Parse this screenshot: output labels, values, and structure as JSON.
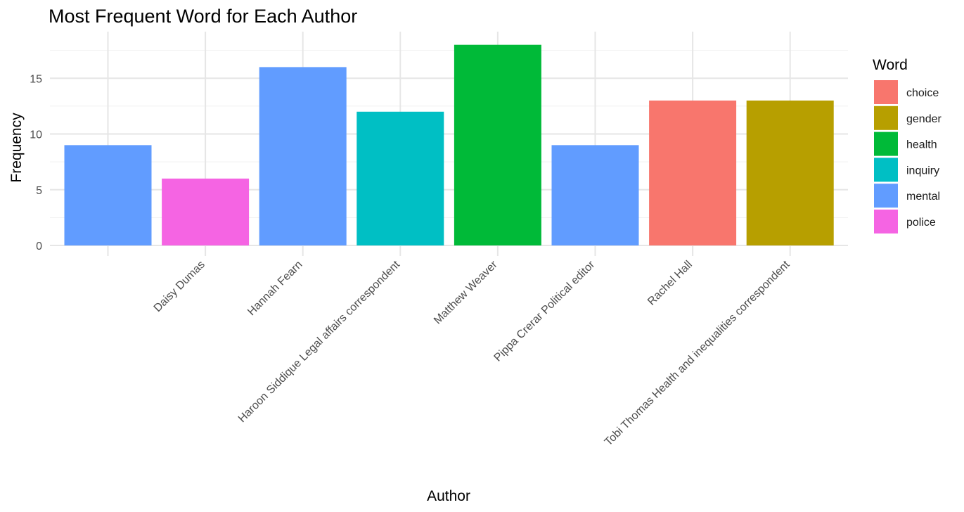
{
  "chart_data": {
    "type": "bar",
    "title": "Most Frequent Word for Each Author",
    "xlabel": "Author",
    "ylabel": "Frequency",
    "ylim": [
      0,
      18
    ],
    "yticks": [
      0,
      5,
      10,
      15
    ],
    "categories": [
      "",
      "Daisy Dumas",
      "Hannah Fearn",
      "Haroon Siddique Legal affairs correspondent",
      "Matthew Weaver",
      "Pippa Crerar Political editor",
      "Rachel Hall",
      "Tobi Thomas Health and inequalities correspondent"
    ],
    "values": [
      9,
      6,
      16,
      12,
      18,
      9,
      13,
      13
    ],
    "words": [
      "mental",
      "police",
      "mental",
      "inquiry",
      "health",
      "mental",
      "choice",
      "gender"
    ],
    "legend": {
      "title": "Word",
      "position": "right",
      "entries": [
        {
          "label": "choice",
          "color": "#F8766D"
        },
        {
          "label": "gender",
          "color": "#B79F00"
        },
        {
          "label": "health",
          "color": "#00BA38"
        },
        {
          "label": "inquiry",
          "color": "#00BFC4"
        },
        {
          "label": "mental",
          "color": "#619CFF"
        },
        {
          "label": "police",
          "color": "#F564E3"
        }
      ]
    },
    "grid": true
  }
}
